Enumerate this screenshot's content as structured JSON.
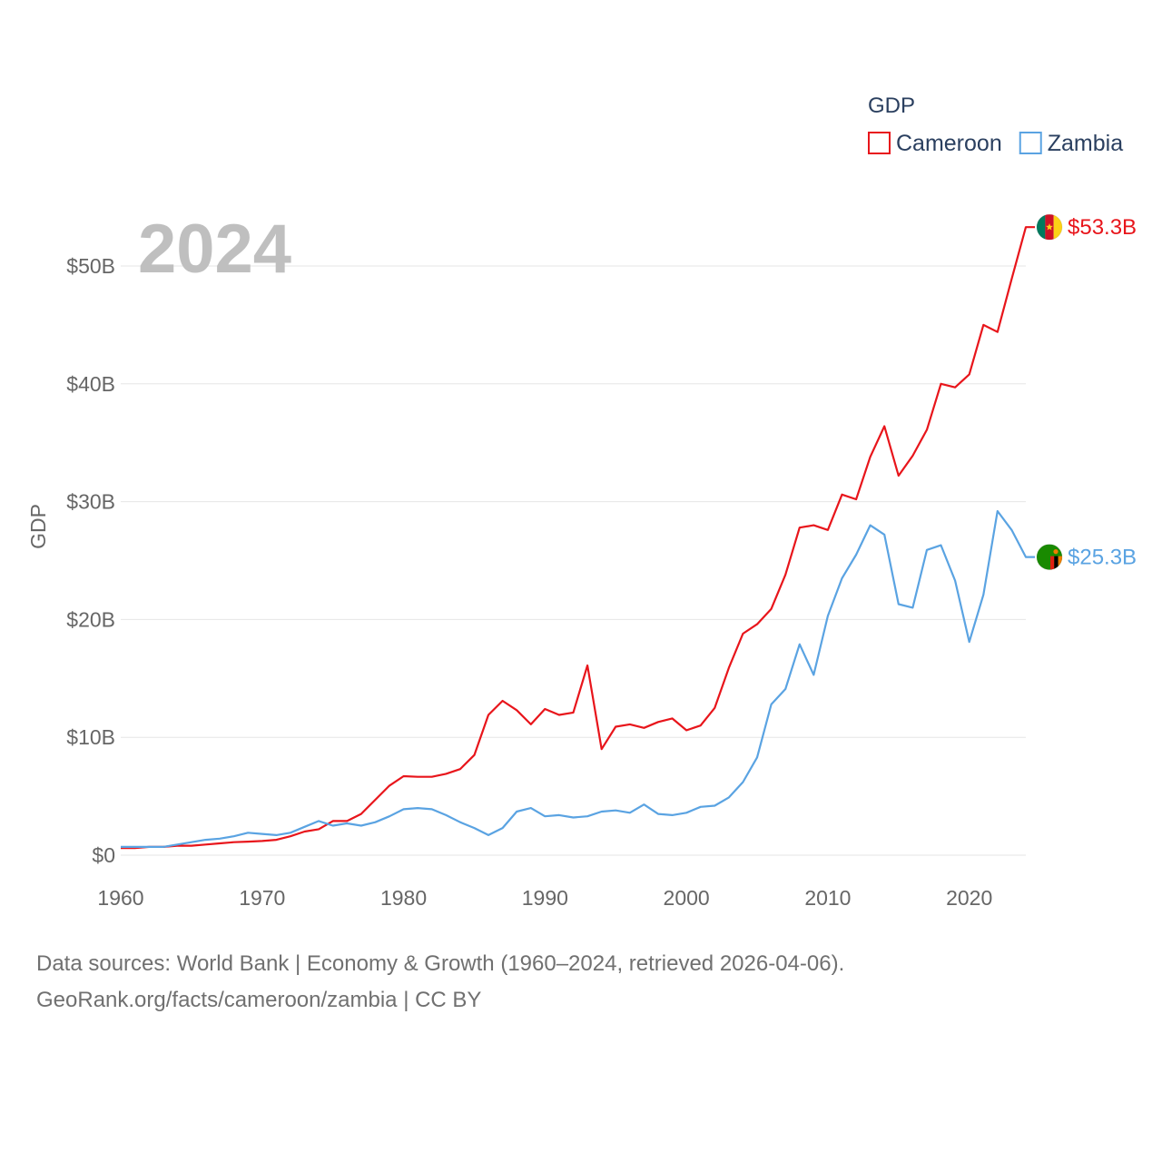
{
  "chart_data": {
    "type": "line",
    "title": "GDP",
    "year_label": "2024",
    "ylabel": "GDP",
    "xlabel": "",
    "xlim": [
      1960,
      2024
    ],
    "ylim": [
      0,
      53.3
    ],
    "x_ticks": [
      1960,
      1970,
      1980,
      1990,
      2000,
      2010,
      2020
    ],
    "x_tick_labels": [
      "1960",
      "1970",
      "1980",
      "1990",
      "2000",
      "2010",
      "2020"
    ],
    "y_ticks": [
      0,
      10,
      20,
      30,
      40,
      50
    ],
    "y_tick_labels": [
      "$0",
      "$10B",
      "$20B",
      "$30B",
      "$40B",
      "$50B"
    ],
    "grid": true,
    "legend_position": "top-right",
    "x": [
      1960,
      1961,
      1962,
      1963,
      1964,
      1965,
      1966,
      1967,
      1968,
      1969,
      1970,
      1971,
      1972,
      1973,
      1974,
      1975,
      1976,
      1977,
      1978,
      1979,
      1980,
      1981,
      1982,
      1983,
      1984,
      1985,
      1986,
      1987,
      1988,
      1989,
      1990,
      1991,
      1992,
      1993,
      1994,
      1995,
      1996,
      1997,
      1998,
      1999,
      2000,
      2001,
      2002,
      2003,
      2004,
      2005,
      2006,
      2007,
      2008,
      2009,
      2010,
      2011,
      2012,
      2013,
      2014,
      2015,
      2016,
      2017,
      2018,
      2019,
      2020,
      2021,
      2022,
      2023,
      2024
    ],
    "series": [
      {
        "name": "Cameroon",
        "color": "#e8151b",
        "end_label": "$53.3B",
        "flag": "cameroon-flag-icon",
        "values": [
          0.6,
          0.6,
          0.7,
          0.7,
          0.8,
          0.8,
          0.9,
          1.0,
          1.1,
          1.15,
          1.2,
          1.3,
          1.6,
          2.0,
          2.2,
          2.9,
          2.9,
          3.5,
          4.7,
          5.9,
          6.7,
          6.65,
          6.65,
          6.9,
          7.3,
          8.5,
          11.9,
          13.1,
          12.3,
          11.1,
          12.4,
          11.9,
          12.1,
          16.1,
          9.0,
          10.9,
          11.1,
          10.8,
          11.3,
          11.6,
          10.6,
          11.0,
          12.5,
          15.9,
          18.8,
          19.6,
          20.9,
          23.8,
          27.8,
          28.0,
          27.6,
          30.6,
          30.2,
          33.8,
          36.4,
          32.2,
          33.9,
          36.1,
          40.0,
          39.7,
          40.8,
          45.0,
          44.4,
          48.9,
          53.3
        ]
      },
      {
        "name": "Zambia",
        "color": "#5aa3e2",
        "end_label": "$25.3B",
        "flag": "zambia-flag-icon",
        "values": [
          0.7,
          0.7,
          0.7,
          0.7,
          0.9,
          1.1,
          1.3,
          1.4,
          1.6,
          1.9,
          1.8,
          1.7,
          1.9,
          2.4,
          2.9,
          2.5,
          2.7,
          2.5,
          2.8,
          3.3,
          3.9,
          4.0,
          3.9,
          3.4,
          2.8,
          2.3,
          1.7,
          2.3,
          3.7,
          4.0,
          3.3,
          3.4,
          3.2,
          3.3,
          3.7,
          3.8,
          3.6,
          4.3,
          3.5,
          3.4,
          3.6,
          4.1,
          4.2,
          4.9,
          6.2,
          8.3,
          12.8,
          14.1,
          17.9,
          15.3,
          20.3,
          23.5,
          25.5,
          28.0,
          27.2,
          21.3,
          21.0,
          25.9,
          26.3,
          23.3,
          18.1,
          22.1,
          29.2,
          27.6,
          25.3
        ]
      }
    ]
  },
  "source_text": {
    "line1": "Data sources: World Bank | Economy & Growth (1960–2024, retrieved 2026-04-06).",
    "line2": "GeoRank.org/facts/cameroon/zambia | CC BY"
  }
}
